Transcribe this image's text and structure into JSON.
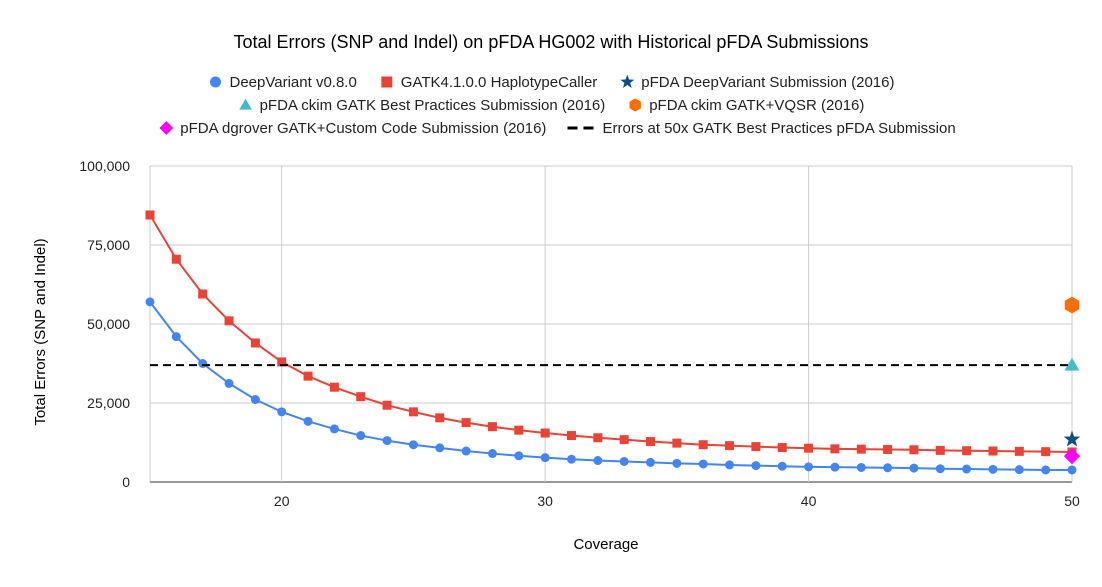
{
  "chart_data": {
    "type": "line",
    "title": "Total Errors (SNP and Indel) on pFDA HG002 with Historical pFDA Submissions",
    "xlabel": "Coverage",
    "ylabel": "Total Errors (SNP and Indel)",
    "xlim": [
      15,
      50
    ],
    "ylim": [
      0,
      100000
    ],
    "x_ticks": [
      20,
      30,
      40,
      50
    ],
    "y_ticks": [
      0,
      25000,
      50000,
      75000,
      100000
    ],
    "y_tick_labels": [
      "0",
      "25,000",
      "50,000",
      "75,000",
      "100,000"
    ],
    "grid": true,
    "legend_position": "top",
    "x": [
      15,
      16,
      17,
      18,
      19,
      20,
      21,
      22,
      23,
      24,
      25,
      26,
      27,
      28,
      29,
      30,
      31,
      32,
      33,
      34,
      35,
      36,
      37,
      38,
      39,
      40,
      41,
      42,
      43,
      44,
      45,
      46,
      47,
      48,
      49,
      50
    ],
    "series": [
      {
        "name": "DeepVariant v0.8.0",
        "color": "#4285f4",
        "marker": "circle",
        "values": [
          57000,
          46000,
          37500,
          31200,
          26100,
          22200,
          19200,
          16800,
          14700,
          13100,
          11800,
          10800,
          9800,
          9000,
          8300,
          7700,
          7200,
          6800,
          6500,
          6200,
          5900,
          5700,
          5400,
          5200,
          5000,
          4800,
          4700,
          4600,
          4500,
          4400,
          4200,
          4100,
          4000,
          3900,
          3800,
          3800
        ]
      },
      {
        "name": "GATK4.1.0.0 HaplotypeCaller",
        "color": "#ea4335",
        "marker": "square",
        "values": [
          84500,
          70500,
          59500,
          51000,
          44000,
          38000,
          33500,
          30000,
          27000,
          24300,
          22200,
          20300,
          18800,
          17500,
          16400,
          15500,
          14700,
          14000,
          13400,
          12800,
          12300,
          11800,
          11500,
          11200,
          10900,
          10700,
          10500,
          10400,
          10300,
          10200,
          10000,
          9900,
          9800,
          9700,
          9600,
          9500
        ]
      },
      {
        "name": "pFDA DeepVariant Submission (2016)",
        "color": "#0b4f8a",
        "marker": "star",
        "points": [
          [
            50,
            13500
          ]
        ]
      },
      {
        "name": "pFDA ckim GATK Best Practices Submission (2016)",
        "color": "#46bdc6",
        "marker": "triangle",
        "points": [
          [
            50,
            37000
          ]
        ]
      },
      {
        "name": "pFDA ckim GATK+VQSR (2016)",
        "color": "#ff6d01",
        "marker": "hexagon",
        "points": [
          [
            50,
            56000
          ]
        ]
      },
      {
        "name": "pFDA dgrover GATK+Custom Code Submission (2016)",
        "color": "#ff00ff",
        "marker": "diamond",
        "points": [
          [
            50,
            8200
          ]
        ]
      },
      {
        "name": "Errors at 50x GATK Best Practices pFDA Submission",
        "color": "#000000",
        "marker": "dashed-line",
        "constant": 37000
      }
    ]
  }
}
